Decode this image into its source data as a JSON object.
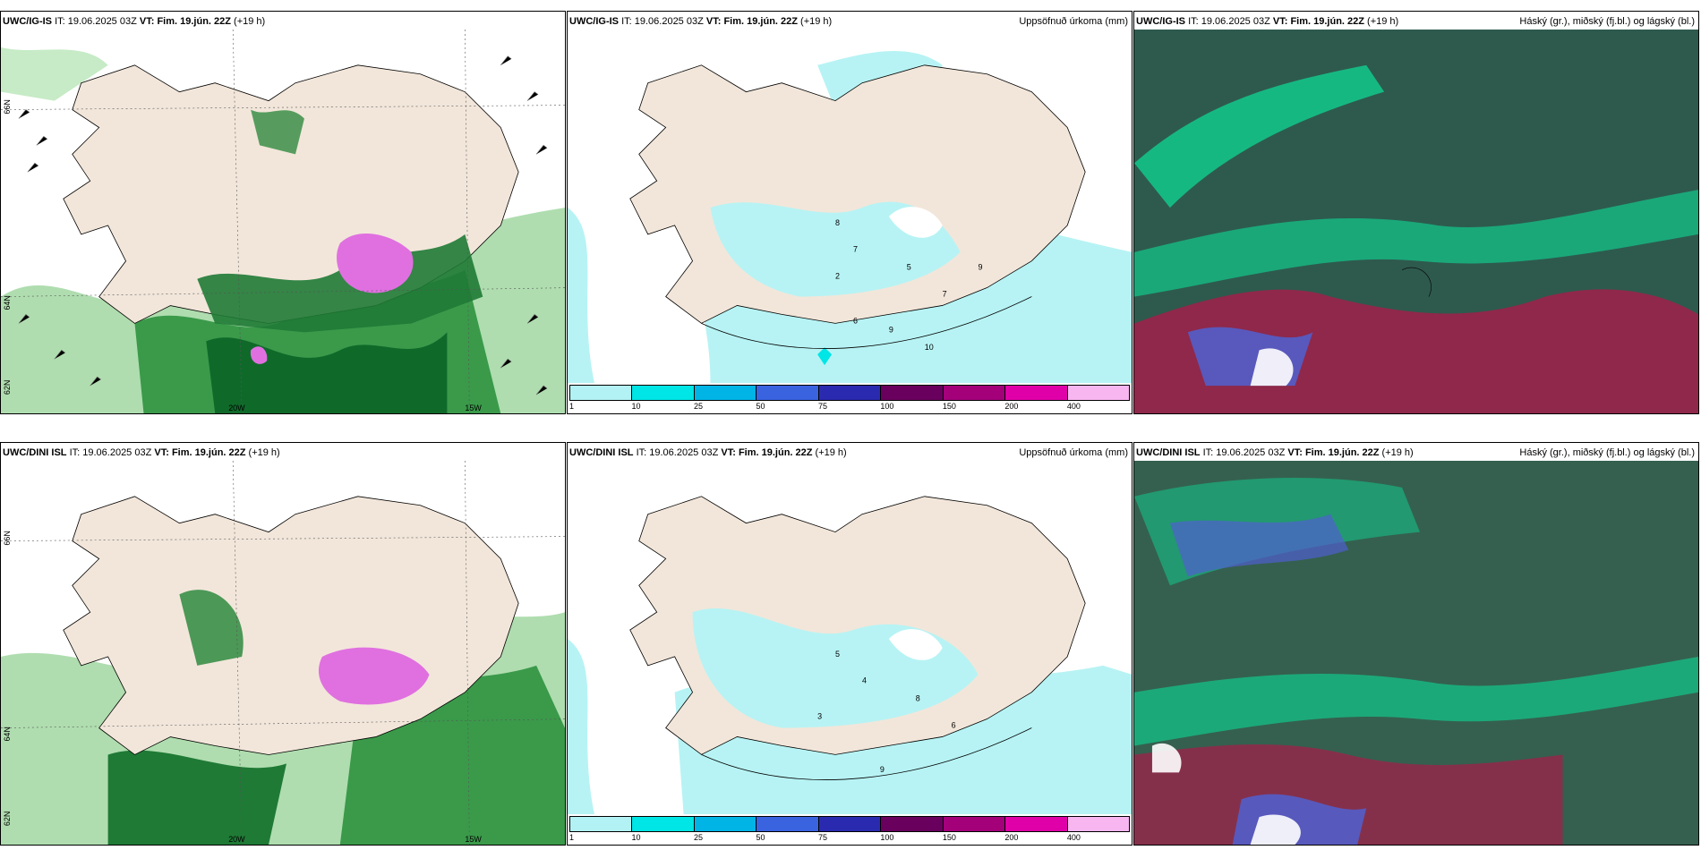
{
  "panels": [
    {
      "model": "UWC/IG-IS",
      "it_label": "IT:",
      "it_value": "19.06.2025 03Z",
      "vt_label": "VT:",
      "vt_value": "Fim. 19.jún. 22Z",
      "lead": "(+19 h)",
      "right_title": "",
      "lat_labels": [
        "66N",
        "64N",
        "62N"
      ],
      "lon_labels": [
        "20W",
        "15W"
      ]
    },
    {
      "model": "UWC/IG-IS",
      "it_label": "IT:",
      "it_value": "19.06.2025 03Z",
      "vt_label": "VT:",
      "vt_value": "Fim. 19.jún. 22Z",
      "lead": "(+19 h)",
      "right_title": "Uppsöfnuð úrkoma (mm)",
      "legend": [
        "1",
        "10",
        "25",
        "50",
        "75",
        "100",
        "150",
        "200",
        "400"
      ]
    },
    {
      "model": "UWC/IG-IS",
      "it_label": "IT:",
      "it_value": "19.06.2025 03Z",
      "vt_label": "VT:",
      "vt_value": "Fim. 19.jún. 22Z",
      "lead": "(+19 h)",
      "right_title": "Háský (gr.), miðský (fj.bl.) og lágský (bl.)"
    },
    {
      "model": "UWC/DINI ISL",
      "it_label": "IT:",
      "it_value": "19.06.2025 03Z",
      "vt_label": "VT:",
      "vt_value": "Fim. 19.jún. 22Z",
      "lead": "(+19 h)",
      "right_title": "",
      "lat_labels": [
        "66N",
        "64N",
        "62N"
      ],
      "lon_labels": [
        "20W",
        "15W"
      ]
    },
    {
      "model": "UWC/DINI ISL",
      "it_label": "IT:",
      "it_value": "19.06.2025 03Z",
      "vt_label": "VT:",
      "vt_value": "Fim. 19.jún. 22Z",
      "lead": "(+19 h)",
      "right_title": "Uppsöfnuð úrkoma (mm)",
      "legend": [
        "1",
        "10",
        "25",
        "50",
        "75",
        "100",
        "150",
        "200",
        "400"
      ]
    },
    {
      "model": "UWC/DINI ISL",
      "it_label": "IT:",
      "it_value": "19.06.2025 03Z",
      "vt_label": "VT:",
      "vt_value": "Fim. 19.jún. 22Z",
      "lead": "(+19 h)",
      "right_title": "Háský (gr.), miðský (fj.bl.) og lágský (bl.)"
    }
  ],
  "colors": {
    "land": "#f2e6da",
    "precip_light": "#b7f3f4",
    "precip_scale": [
      "#b3f2f4",
      "#00e5e5",
      "#00b4e6",
      "#3a63e0",
      "#2a2ab0",
      "#6a005e",
      "#a3007a",
      "#e000a8",
      "#f7b6f0"
    ],
    "cloud_bg": "#2e5a4d",
    "cloud_green": "#12c98c",
    "cloud_red": "#a0204a",
    "cloud_blue": "#5060d0",
    "green_precip": "#6fbf6f",
    "green_dark": "#0f6a2a",
    "magenta": "#e070e0"
  }
}
